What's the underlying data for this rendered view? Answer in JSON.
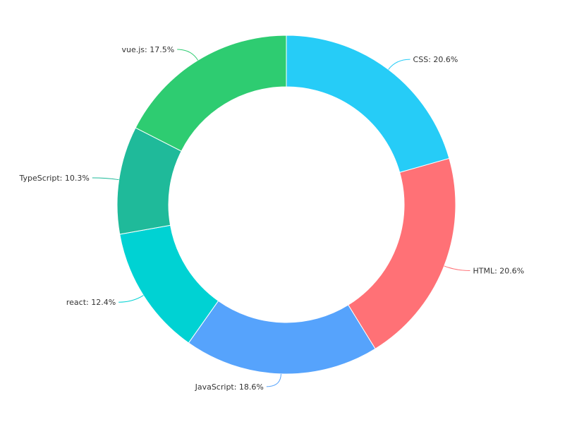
{
  "chart_data": {
    "type": "pie",
    "variant": "donut",
    "title": "",
    "legend": "none",
    "label_format": "{name}: {percent}",
    "slices": [
      {
        "name": "CSS",
        "value": 20.6,
        "label": "CSS: 20.6%",
        "color": "#26CCF7"
      },
      {
        "name": "HTML",
        "value": 20.6,
        "label": "HTML: 20.6%",
        "color": "#FF7176"
      },
      {
        "name": "JavaScript",
        "value": 18.6,
        "label": "JavaScript: 18.6%",
        "color": "#56A3FC"
      },
      {
        "name": "react",
        "value": 12.4,
        "label": "react: 12.4%",
        "color": "#00D2D3"
      },
      {
        "name": "TypeScript",
        "value": 10.3,
        "label": "TypeScript: 10.3%",
        "color": "#1FBA9A"
      },
      {
        "name": "vue.js",
        "value": 17.5,
        "label": "vue.js: 17.5%",
        "color": "#2ECC71"
      }
    ]
  }
}
